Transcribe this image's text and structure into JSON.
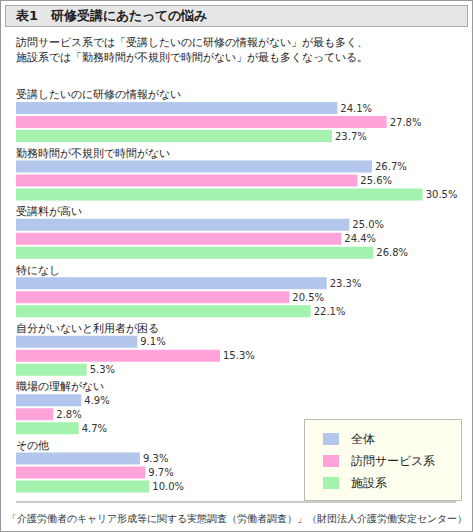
{
  "chart_data": {
    "type": "bar",
    "title": "表1　研修受講にあたっての悩み",
    "subtitle": "訪問サービス系では「受講したいのに研修の情報がない」が最も多く、\n施設系では「勤務時間が不規則で時間がない」が最も多くなっている。",
    "source": "「介護労働者のキャリア形成等に関する実態調査（労働者調査）」（財団法人介護労働安定センター）",
    "orientation": "horizontal",
    "categories": [
      "受講したいのに研修の情報がない",
      "勤務時間が不規則で時間がない",
      "受講料が高い",
      "特になし",
      "自分がいないと利用者が困る",
      "職場の理解がない",
      "その他"
    ],
    "series": [
      {
        "name": "全体",
        "color": "#b3c6ec",
        "values": [
          24.1,
          26.7,
          25.0,
          23.3,
          9.1,
          4.9,
          9.3
        ],
        "value_labels": [
          "24.1%",
          "26.7%",
          "25.0%",
          "23.3%",
          "9.1%",
          "4.9%",
          "9.3%"
        ]
      },
      {
        "name": "訪問サービス系",
        "color": "#ffa3da",
        "values": [
          27.8,
          25.6,
          24.4,
          20.5,
          15.3,
          2.8,
          9.7
        ],
        "value_labels": [
          "27.8%",
          "25.6%",
          "24.4%",
          "20.5%",
          "15.3%",
          "2.8%",
          "9.7%"
        ]
      },
      {
        "name": "施設系",
        "color": "#a3f2ad",
        "values": [
          23.7,
          30.5,
          26.8,
          22.1,
          5.3,
          4.7,
          10.0
        ],
        "value_labels": [
          "23.7%",
          "30.5%",
          "26.8%",
          "22.1%",
          "5.3%",
          "4.7%",
          "10.0%"
        ]
      }
    ],
    "xlim": [
      0,
      33
    ],
    "data_labels": true,
    "tick_labels": "y",
    "grid": false,
    "legend": "bottom right"
  }
}
